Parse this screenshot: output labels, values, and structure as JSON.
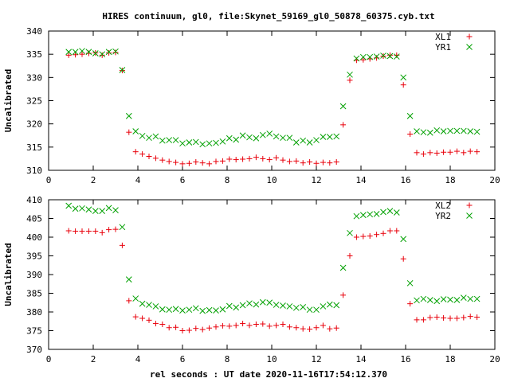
{
  "chart_data": {
    "type": "scatter",
    "title": "HIRES continuum, gl0, file:Skynet_59169_gl0_50878_60375.cyb.txt",
    "xlabel": "rel seconds : UT date 2020-11-16T17:54:12.370",
    "panels": [
      {
        "ylabel": "Uncalibrated",
        "xlim": [
          0,
          20
        ],
        "ylim": [
          310,
          340
        ],
        "xticks": [
          "0",
          "2",
          "4",
          "6",
          "8",
          "10",
          "12",
          "14",
          "16",
          "18",
          "20"
        ],
        "yticks": [
          "310",
          "315",
          "320",
          "325",
          "330",
          "335",
          "340"
        ],
        "series": [
          {
            "name": "XL1",
            "marker": "plus",
            "color": "#e8000b",
            "x": [
              0.9,
              1.2,
              1.5,
              1.8,
              2.1,
              2.4,
              2.7,
              3.0,
              3.3,
              3.6,
              3.9,
              4.2,
              4.5,
              4.8,
              5.1,
              5.4,
              5.7,
              6.0,
              6.3,
              6.6,
              6.9,
              7.2,
              7.5,
              7.8,
              8.1,
              8.4,
              8.7,
              9.0,
              9.3,
              9.6,
              9.9,
              10.2,
              10.5,
              10.8,
              11.1,
              11.4,
              11.7,
              12.0,
              12.3,
              12.6,
              12.9,
              13.2,
              13.5,
              13.8,
              14.1,
              14.4,
              14.7,
              15.0,
              15.3,
              15.6,
              15.9,
              16.2,
              16.5,
              16.8,
              17.1,
              17.4,
              17.7,
              18.0,
              18.3,
              18.6,
              18.9,
              19.2
            ],
            "y": [
              334.8,
              334.9,
              335.0,
              335.2,
              335.3,
              334.8,
              335.3,
              335.4,
              331.5,
              318.2,
              314.0,
              313.5,
              313.0,
              312.6,
              312.2,
              311.9,
              311.7,
              311.4,
              311.5,
              311.8,
              311.6,
              311.4,
              311.9,
              312.0,
              312.4,
              312.3,
              312.4,
              312.5,
              312.8,
              312.5,
              312.3,
              312.7,
              312.2,
              311.9,
              312.0,
              311.6,
              311.8,
              311.5,
              311.7,
              311.6,
              311.8,
              319.8,
              329.4,
              333.7,
              333.8,
              334.0,
              334.2,
              334.6,
              334.8,
              334.8,
              328.4,
              317.8,
              313.8,
              313.5,
              313.8,
              313.7,
              313.9,
              313.9,
              314.1,
              313.8,
              314.1,
              314.0
            ]
          },
          {
            "name": "YR1",
            "marker": "cross",
            "color": "#00a000",
            "x": [
              0.9,
              1.2,
              1.5,
              1.8,
              2.1,
              2.4,
              2.7,
              3.0,
              3.3,
              3.6,
              3.9,
              4.2,
              4.5,
              4.8,
              5.1,
              5.4,
              5.7,
              6.0,
              6.3,
              6.6,
              6.9,
              7.2,
              7.5,
              7.8,
              8.1,
              8.4,
              8.7,
              9.0,
              9.3,
              9.6,
              9.9,
              10.2,
              10.5,
              10.8,
              11.1,
              11.4,
              11.7,
              12.0,
              12.3,
              12.6,
              12.9,
              13.2,
              13.5,
              13.8,
              14.1,
              14.4,
              14.7,
              15.0,
              15.3,
              15.6,
              15.9,
              16.2,
              16.5,
              16.8,
              17.1,
              17.4,
              17.7,
              18.0,
              18.3,
              18.6,
              18.9,
              19.2
            ],
            "y": [
              335.5,
              335.5,
              335.7,
              335.5,
              335.2,
              335.0,
              335.5,
              335.6,
              331.6,
              321.7,
              318.4,
              317.4,
              317.0,
              317.3,
              316.4,
              316.5,
              316.5,
              315.8,
              316.0,
              316.1,
              315.6,
              315.8,
              315.9,
              316.2,
              316.9,
              316.6,
              317.5,
              317.1,
              316.9,
              317.6,
              317.9,
              317.3,
              317.0,
              317.0,
              316.0,
              316.4,
              316.0,
              316.5,
              317.2,
              317.2,
              317.3,
              323.8,
              330.6,
              334.1,
              334.4,
              334.4,
              334.5,
              334.7,
              334.6,
              334.5,
              330.0,
              321.7,
              318.4,
              318.2,
              318.1,
              318.6,
              318.4,
              318.5,
              318.5,
              318.5,
              318.4,
              318.3
            ]
          }
        ]
      },
      {
        "ylabel": "Uncalibrated",
        "xlim": [
          0,
          20
        ],
        "ylim": [
          370,
          410
        ],
        "xticks": [
          "0",
          "2",
          "4",
          "6",
          "8",
          "10",
          "12",
          "14",
          "16",
          "18",
          "20"
        ],
        "yticks": [
          "370",
          "375",
          "380",
          "385",
          "390",
          "395",
          "400",
          "405",
          "410"
        ],
        "series": [
          {
            "name": "XL2",
            "marker": "plus",
            "color": "#e8000b",
            "x": [
              0.9,
              1.2,
              1.5,
              1.8,
              2.1,
              2.4,
              2.7,
              3.0,
              3.3,
              3.6,
              3.9,
              4.2,
              4.5,
              4.8,
              5.1,
              5.4,
              5.7,
              6.0,
              6.3,
              6.6,
              6.9,
              7.2,
              7.5,
              7.8,
              8.1,
              8.4,
              8.7,
              9.0,
              9.3,
              9.6,
              9.9,
              10.2,
              10.5,
              10.8,
              11.1,
              11.4,
              11.7,
              12.0,
              12.3,
              12.6,
              12.9,
              13.2,
              13.5,
              13.8,
              14.1,
              14.4,
              14.7,
              15.0,
              15.3,
              15.6,
              15.9,
              16.2,
              16.5,
              16.8,
              17.1,
              17.4,
              17.7,
              18.0,
              18.3,
              18.6,
              18.9,
              19.2
            ],
            "y": [
              401.7,
              401.6,
              401.6,
              401.6,
              401.6,
              401.2,
              402.0,
              402.1,
              397.8,
              383.0,
              378.7,
              378.3,
              377.8,
              376.9,
              376.7,
              375.8,
              375.9,
              375.0,
              375.1,
              375.6,
              375.3,
              375.7,
              376.0,
              376.3,
              376.2,
              376.4,
              376.9,
              376.4,
              376.7,
              376.8,
              376.2,
              376.4,
              376.7,
              376.0,
              375.8,
              375.5,
              375.4,
              375.8,
              376.4,
              375.5,
              375.7,
              384.5,
              395.0,
              400.0,
              400.2,
              400.3,
              400.7,
              401.0,
              401.7,
              401.7,
              394.2,
              382.2,
              377.9,
              377.9,
              378.5,
              378.6,
              378.4,
              378.3,
              378.3,
              378.5,
              378.8,
              378.6
            ]
          },
          {
            "name": "YR2",
            "marker": "cross",
            "color": "#00a000",
            "x": [
              0.9,
              1.2,
              1.5,
              1.8,
              2.1,
              2.4,
              2.7,
              3.0,
              3.3,
              3.6,
              3.9,
              4.2,
              4.5,
              4.8,
              5.1,
              5.4,
              5.7,
              6.0,
              6.3,
              6.6,
              6.9,
              7.2,
              7.5,
              7.8,
              8.1,
              8.4,
              8.7,
              9.0,
              9.3,
              9.6,
              9.9,
              10.2,
              10.5,
              10.8,
              11.1,
              11.4,
              11.7,
              12.0,
              12.3,
              12.6,
              12.9,
              13.2,
              13.5,
              13.8,
              14.1,
              14.4,
              14.7,
              15.0,
              15.3,
              15.6,
              15.9,
              16.2,
              16.5,
              16.8,
              17.1,
              17.4,
              17.7,
              18.0,
              18.3,
              18.6,
              18.9,
              19.2
            ],
            "y": [
              408.4,
              407.6,
              407.7,
              407.4,
              407.0,
              407.0,
              407.8,
              407.2,
              402.7,
              388.7,
              383.6,
              382.2,
              381.9,
              381.5,
              380.7,
              380.6,
              380.8,
              380.4,
              380.6,
              381.0,
              380.3,
              380.5,
              380.4,
              380.7,
              381.6,
              381.2,
              381.8,
              382.3,
              382.0,
              382.6,
              382.5,
              381.9,
              381.7,
              381.5,
              381.1,
              381.3,
              380.6,
              380.6,
              381.5,
              382.0,
              381.8,
              391.8,
              401.1,
              405.6,
              405.9,
              406.1,
              406.2,
              406.7,
              407.0,
              406.6,
              399.5,
              387.7,
              383.1,
              383.5,
              383.2,
              382.9,
              383.4,
              383.3,
              383.2,
              383.8,
              383.5,
              383.5
            ]
          }
        ]
      }
    ]
  }
}
